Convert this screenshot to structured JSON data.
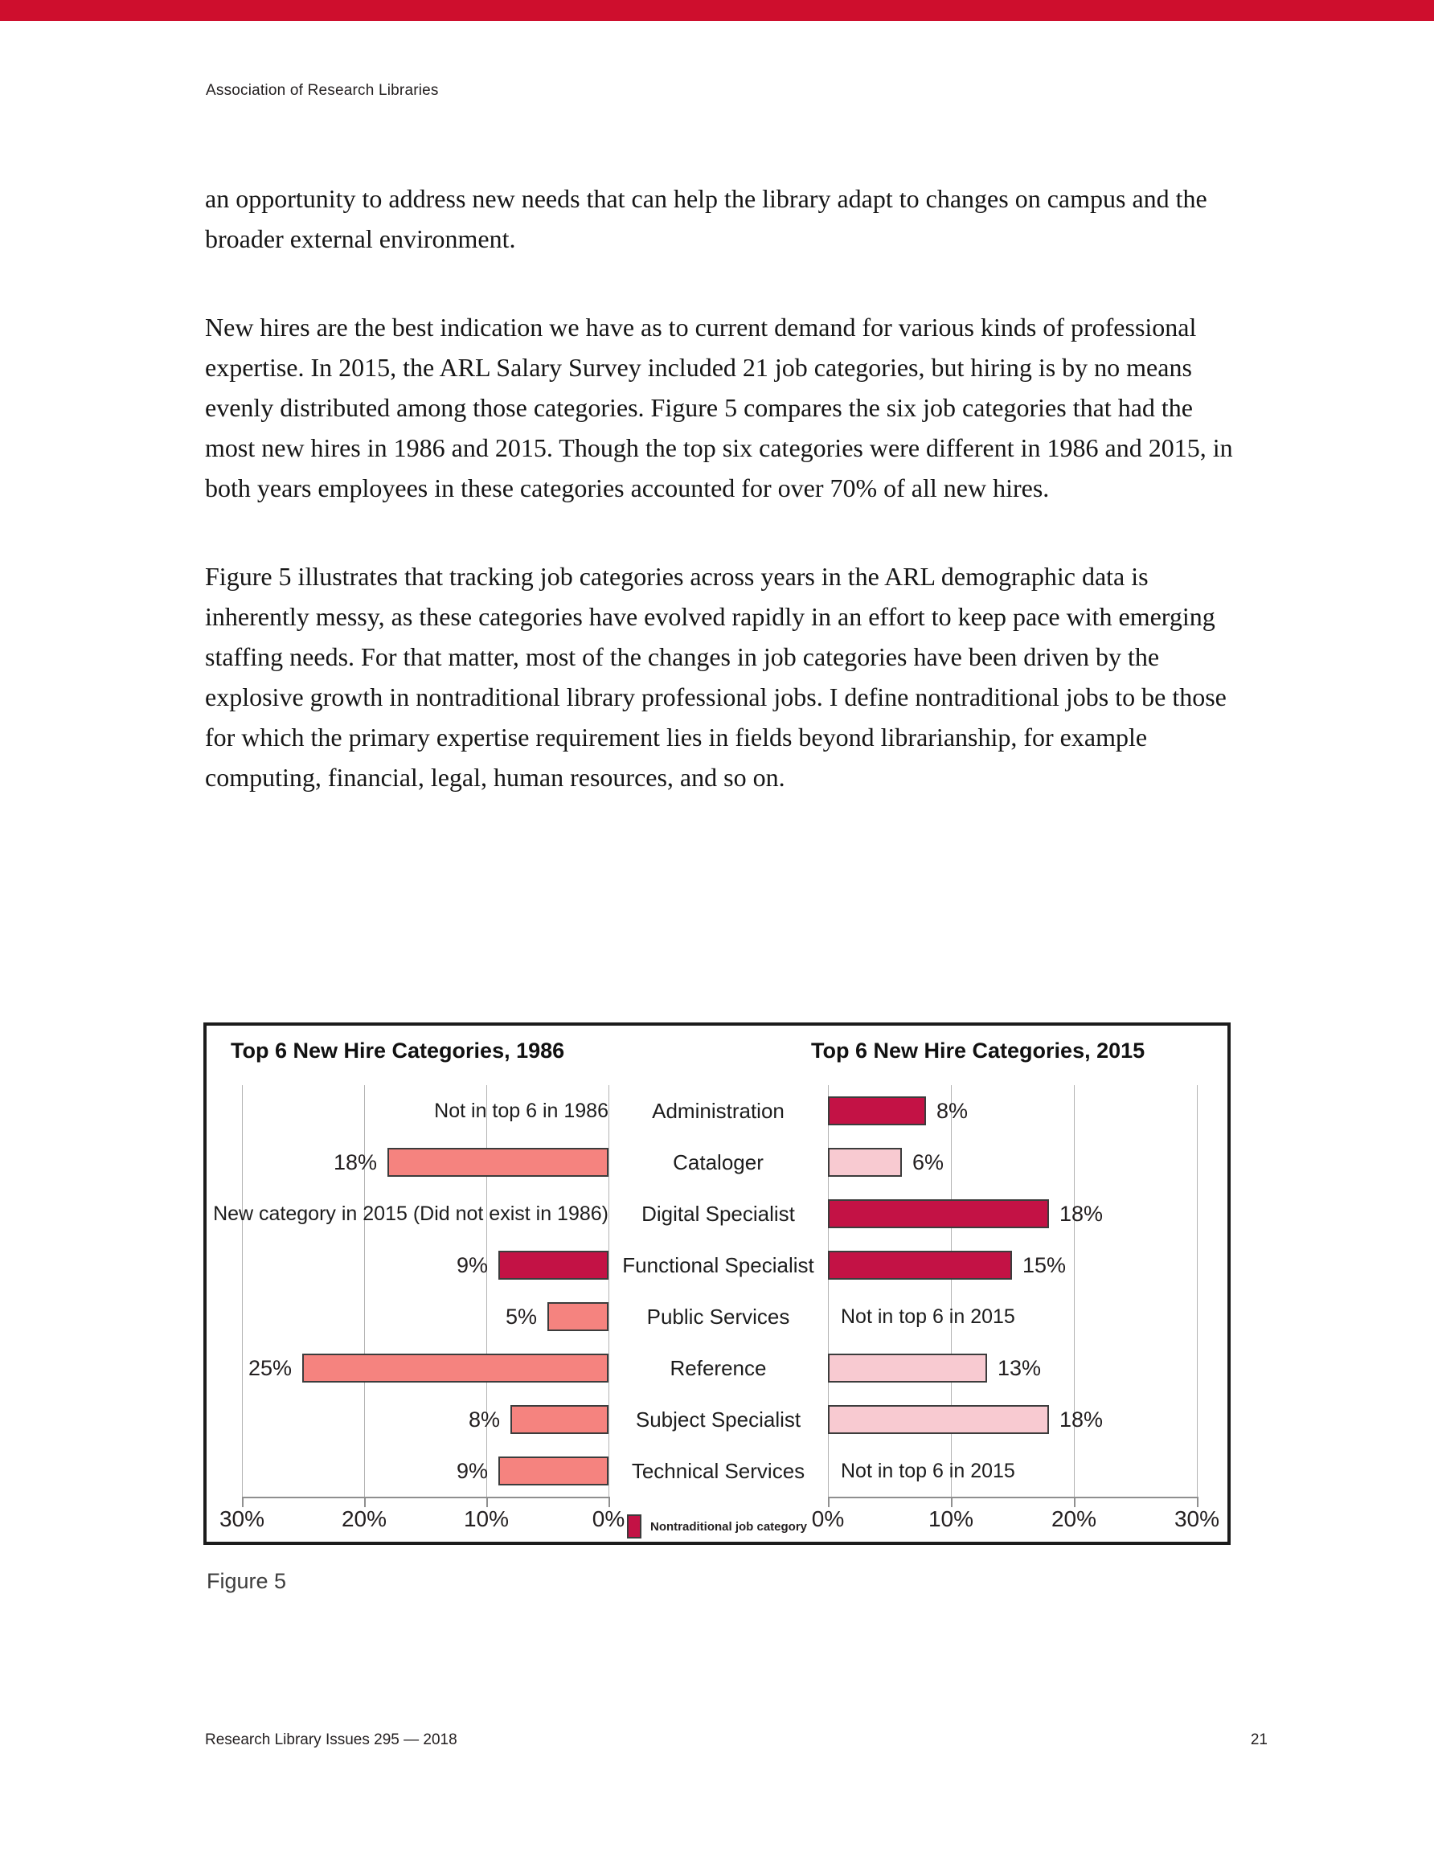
{
  "page": {
    "running_header": "Association of Research Libraries",
    "footer_left": "Research Library Issues 295 — 2018",
    "page_number": "21",
    "figure_caption": "Figure 5"
  },
  "body": {
    "paragraph_1": "an opportunity to address new needs that can help the library adapt to changes on campus and the broader external environment.",
    "paragraph_2": "New hires are the best indication we have as to current demand for various kinds of professional expertise. In 2015, the ARL Salary Survey included 21 job categories, but hiring is by no means evenly distributed among those categories. Figure 5 compares the six job categories that had the most new hires in 1986 and 2015. Though the top six categories were different in 1986 and 2015, in both years employees in these categories accounted for over 70% of all new hires.",
    "paragraph_3": "Figure 5 illustrates that tracking job categories across years in the ARL demographic data is inherently messy, as these categories have evolved rapidly in an effort to keep pace with emerging staffing needs. For that matter, most of the changes in job categories have been driven by the explosive growth in nontraditional library professional jobs. I define nontraditional jobs to be those for which the primary expertise requirement lies in fields beyond librarianship, for example computing, financial, legal, human resources, and so on."
  },
  "colors": {
    "accent_red_bar": "#CE0E2D",
    "salmon_1986": "#F5837F",
    "crimson_nontraditional": "#C31245",
    "pink_2015": "#F8CAD1"
  },
  "figure": {
    "title_1986": "Top 6 New Hire Categories, 1986",
    "title_2015": "Top 6 New Hire Categories, 2015",
    "legend_label": "Nontraditional job category",
    "axis_1986": [
      "30%",
      "20%",
      "10%",
      "0%"
    ],
    "axis_2015": [
      "0%",
      "10%",
      "20%",
      "30%"
    ],
    "rows": [
      {
        "category": "Administration",
        "left": {
          "note": "Not in top 6 in 1986"
        },
        "right": {
          "value": 8,
          "label": "8%",
          "color": "#C31245"
        }
      },
      {
        "category": "Cataloger",
        "left": {
          "value": 18,
          "label": "18%",
          "color": "#F5837F"
        },
        "right": {
          "value": 6,
          "label": "6%",
          "color": "#F8CAD1"
        }
      },
      {
        "category": "Digital Specialist",
        "left": {
          "note": "New category in 2015 (Did not exist in 1986)"
        },
        "right": {
          "value": 18,
          "label": "18%",
          "color": "#C31245"
        }
      },
      {
        "category": "Functional Specialist",
        "left": {
          "value": 9,
          "label": "9%",
          "color": "#C31245"
        },
        "right": {
          "value": 15,
          "label": "15%",
          "color": "#C31245"
        }
      },
      {
        "category": "Public Services",
        "left": {
          "value": 5,
          "label": "5%",
          "color": "#F5837F"
        },
        "right": {
          "note": "Not in top 6 in 2015"
        }
      },
      {
        "category": "Reference",
        "left": {
          "value": 25,
          "label": "25%",
          "color": "#F5837F"
        },
        "right": {
          "value": 13,
          "label": "13%",
          "color": "#F8CAD1"
        }
      },
      {
        "category": "Subject Specialist",
        "left": {
          "value": 8,
          "label": "8%",
          "color": "#F5837F"
        },
        "right": {
          "value": 18,
          "label": "18%",
          "color": "#F8CAD1"
        }
      },
      {
        "category": "Technical Services",
        "left": {
          "value": 9,
          "label": "9%",
          "color": "#F5837F"
        },
        "right": {
          "note": "Not in top 6 in 2015"
        }
      }
    ]
  },
  "chart_data": [
    {
      "type": "bar",
      "title": "Top 6 New Hire Categories, 1986",
      "orientation": "horizontal",
      "axis_reversed": true,
      "categories": [
        "Administration",
        "Cataloger",
        "Digital Specialist",
        "Functional Specialist",
        "Public Services",
        "Reference",
        "Subject Specialist",
        "Technical Services"
      ],
      "values": [
        null,
        18,
        null,
        9,
        5,
        25,
        8,
        9
      ],
      "notes": [
        "Not in top 6 in 1986",
        null,
        "New category in 2015 (Did not exist in 1986)",
        null,
        null,
        null,
        null,
        null
      ],
      "unit": "%",
      "xlim": [
        0,
        30
      ],
      "x_ticks": [
        "30%",
        "20%",
        "10%",
        "0%"
      ],
      "grid": true,
      "nontraditional_categories": [
        "Functional Specialist"
      ]
    },
    {
      "type": "bar",
      "title": "Top 6 New Hire Categories, 2015",
      "orientation": "horizontal",
      "axis_reversed": false,
      "categories": [
        "Administration",
        "Cataloger",
        "Digital Specialist",
        "Functional Specialist",
        "Public Services",
        "Reference",
        "Subject Specialist",
        "Technical Services"
      ],
      "values": [
        8,
        6,
        18,
        15,
        null,
        13,
        18,
        null
      ],
      "notes": [
        null,
        null,
        null,
        null,
        "Not in top 6 in 2015",
        null,
        null,
        "Not in top 6 in 2015"
      ],
      "unit": "%",
      "xlim": [
        0,
        30
      ],
      "x_ticks": [
        "0%",
        "10%",
        "20%",
        "30%"
      ],
      "grid": true,
      "legend": {
        "label": "Nontraditional job category",
        "position": "bottom"
      },
      "nontraditional_categories": [
        "Administration",
        "Digital Specialist",
        "Functional Specialist"
      ]
    }
  ]
}
